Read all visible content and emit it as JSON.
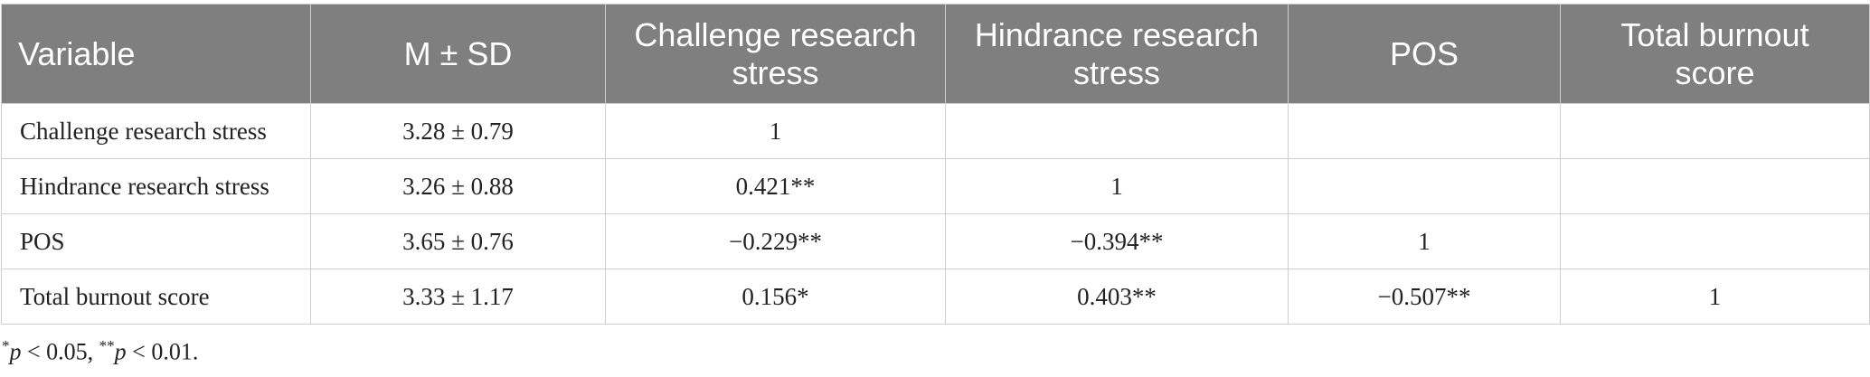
{
  "table": {
    "header": [
      "Variable",
      "M ± SD",
      "Challenge research stress",
      "Hindrance research stress",
      "POS",
      "Total burnout score"
    ],
    "rows": [
      [
        "Challenge research stress",
        "3.28 ± 0.79",
        "1",
        null,
        null,
        null
      ],
      [
        "Hindrance research stress",
        "3.26 ± 0.88",
        "0.421**",
        "1",
        null,
        null
      ],
      [
        "POS",
        "3.65 ± 0.76",
        "−0.229**",
        "−0.394**",
        "1",
        null
      ],
      [
        "Total burnout score",
        "3.33 ± 1.17",
        "0.156*",
        "0.403**",
        "−0.507**",
        "1"
      ]
    ]
  },
  "footnote": [
    "*",
    "p",
    " < 0.05, ",
    "**",
    "p",
    " < 0.01."
  ]
}
